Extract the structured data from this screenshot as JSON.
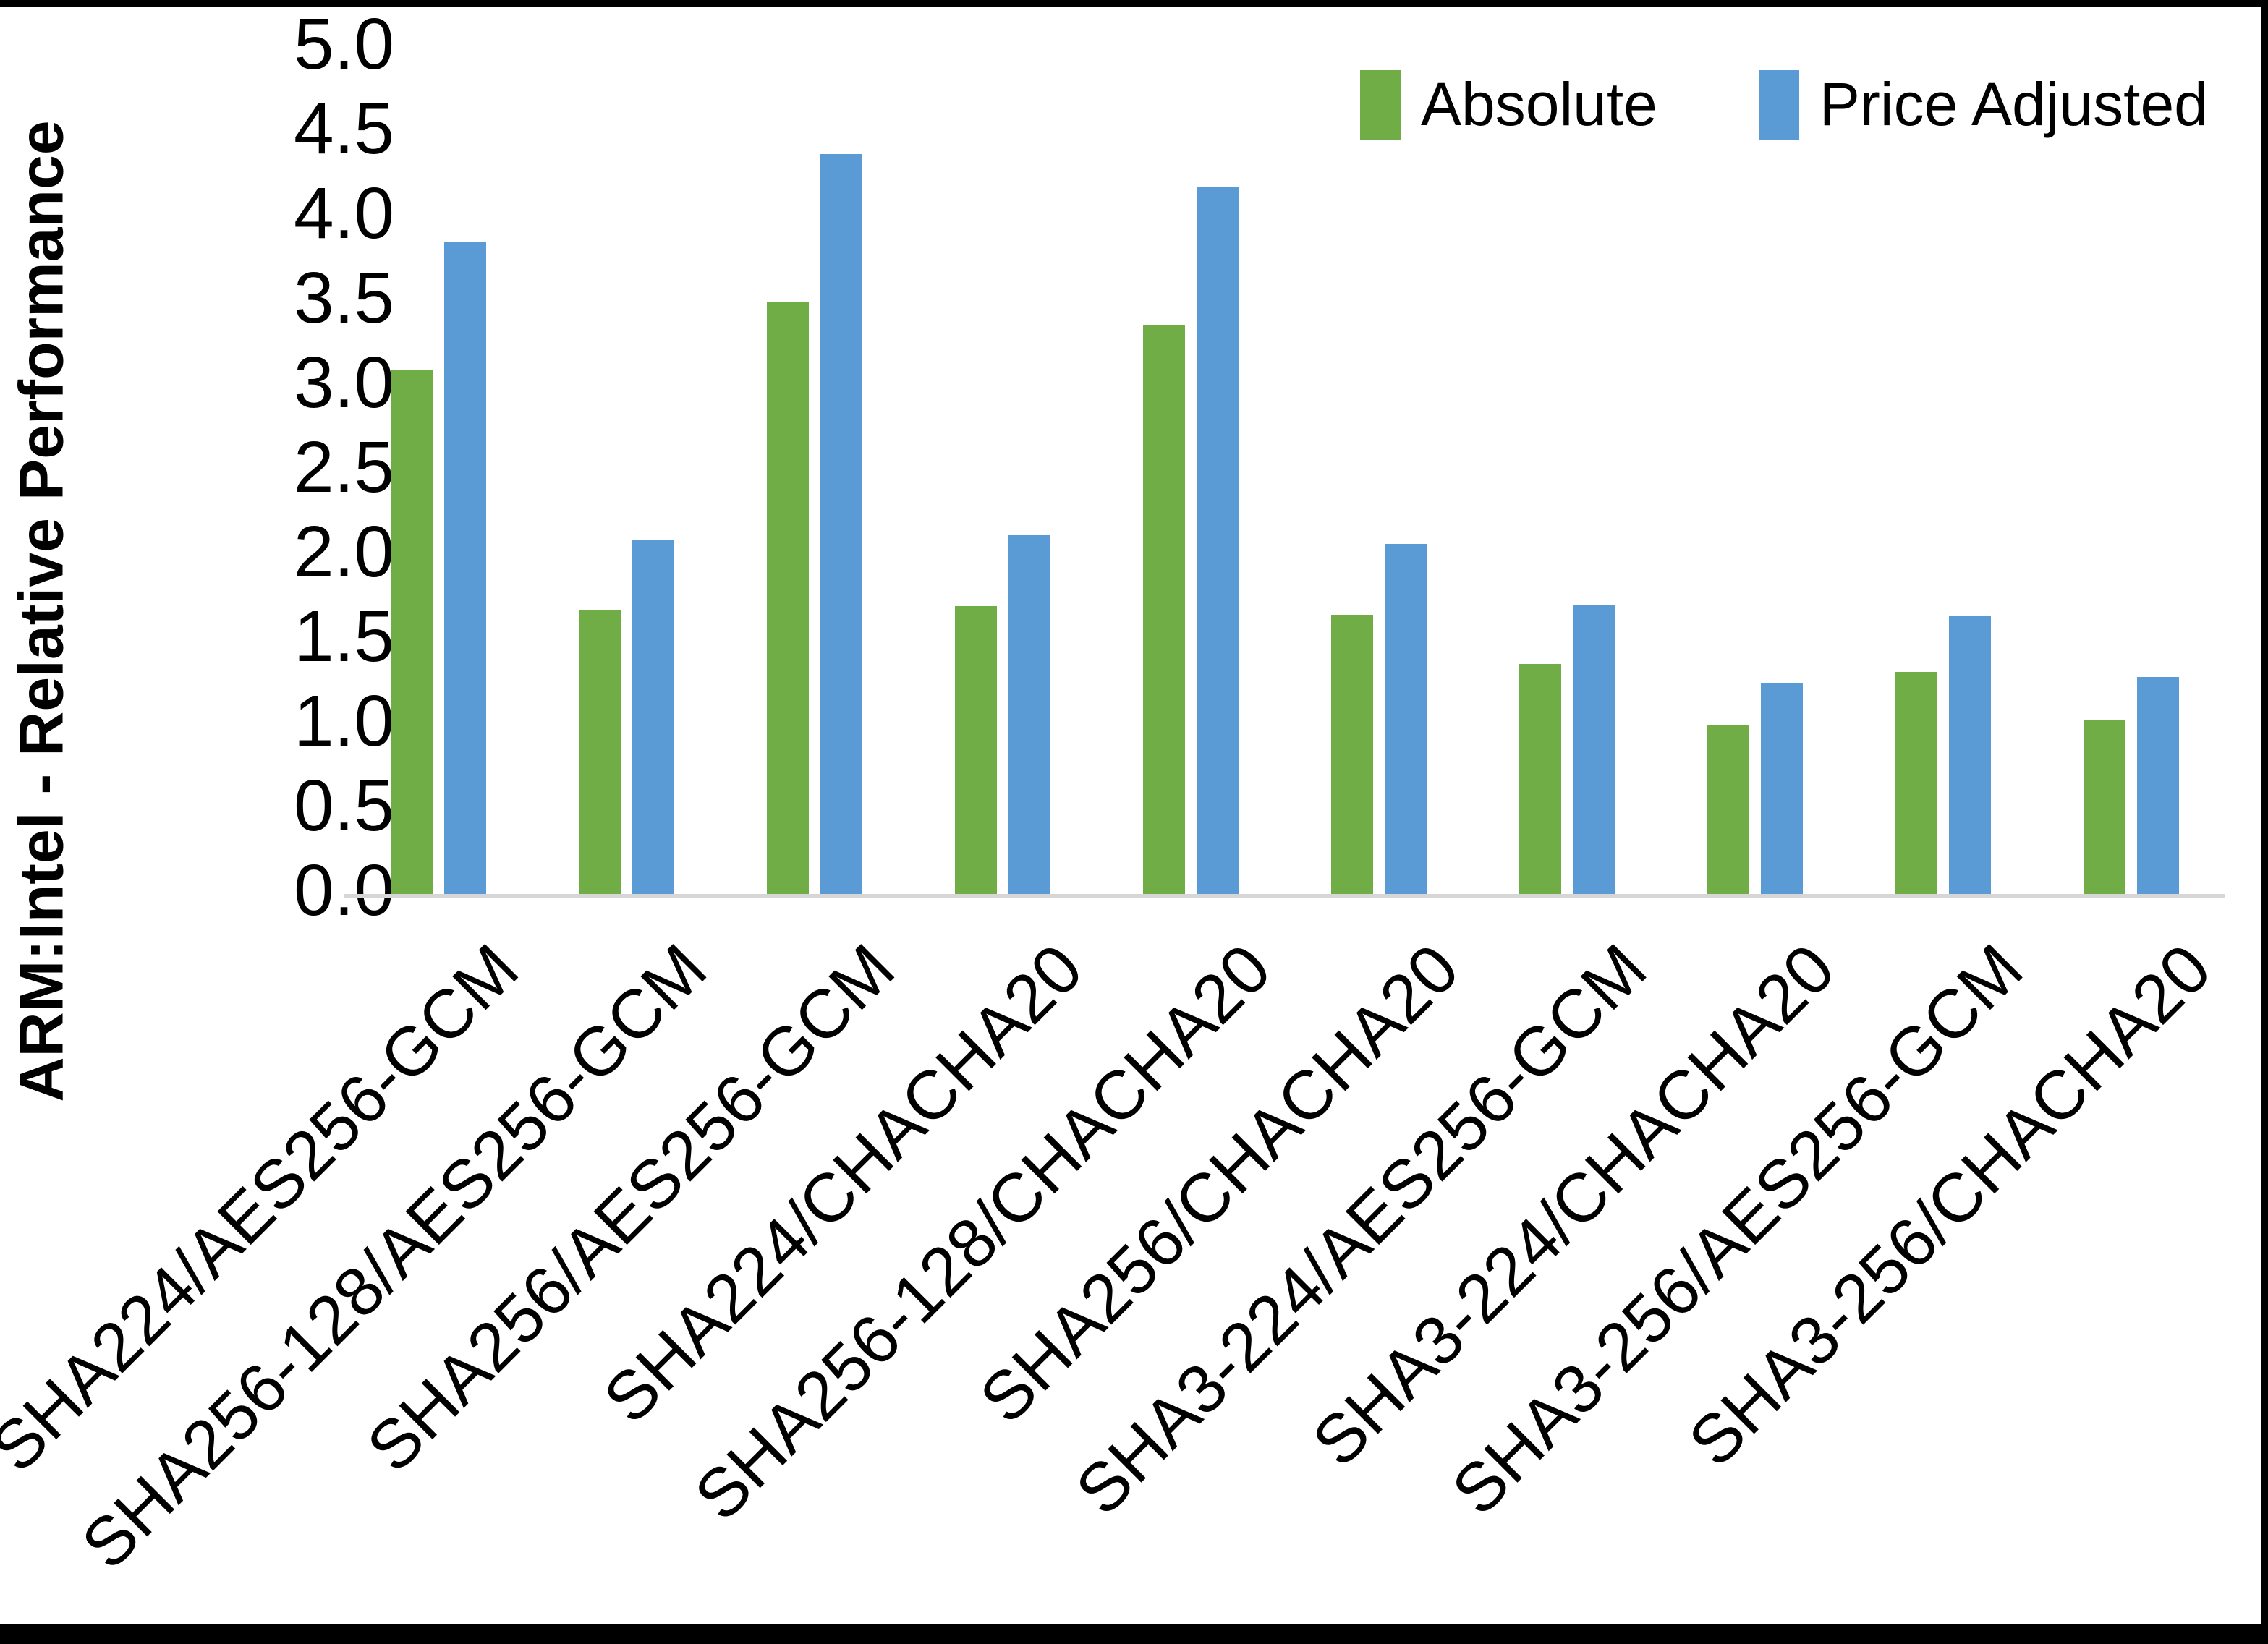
{
  "chart_data": {
    "type": "bar",
    "title": "",
    "xlabel": "",
    "ylabel": "ARM:Intel - Relative Performance",
    "ylim": [
      0.0,
      5.0
    ],
    "ytick_step": 0.5,
    "yticks": [
      "0.0",
      "0.5",
      "1.0",
      "1.5",
      "2.0",
      "2.5",
      "3.0",
      "3.5",
      "4.0",
      "4.5",
      "5.0"
    ],
    "grid": false,
    "legend_position": "top-right",
    "axis_line_color": "#d6d6d6",
    "categories": [
      "SHA224/AES256-GCM",
      "SHA256-128/AES256-GCM",
      "SHA256/AES256-GCM",
      "SHA224/CHACHA20",
      "SHA256-128/CHACHA20",
      "SHA256/CHACHA20",
      "SHA3-224/AES256-GCM",
      "SHA3-224/CHACHA20",
      "SHA3-256/AES256-GCM",
      "SHA3-256/CHACHA20"
    ],
    "series": [
      {
        "name": "Absolute",
        "color": "#70AD47",
        "values": [
          3.1,
          1.68,
          3.5,
          1.7,
          3.36,
          1.65,
          1.36,
          1.0,
          1.31,
          1.03
        ]
      },
      {
        "name": "Price Adjusted",
        "color": "#5B9BD5",
        "values": [
          3.85,
          2.09,
          4.37,
          2.12,
          4.18,
          2.07,
          1.71,
          1.25,
          1.64,
          1.28
        ]
      }
    ]
  }
}
